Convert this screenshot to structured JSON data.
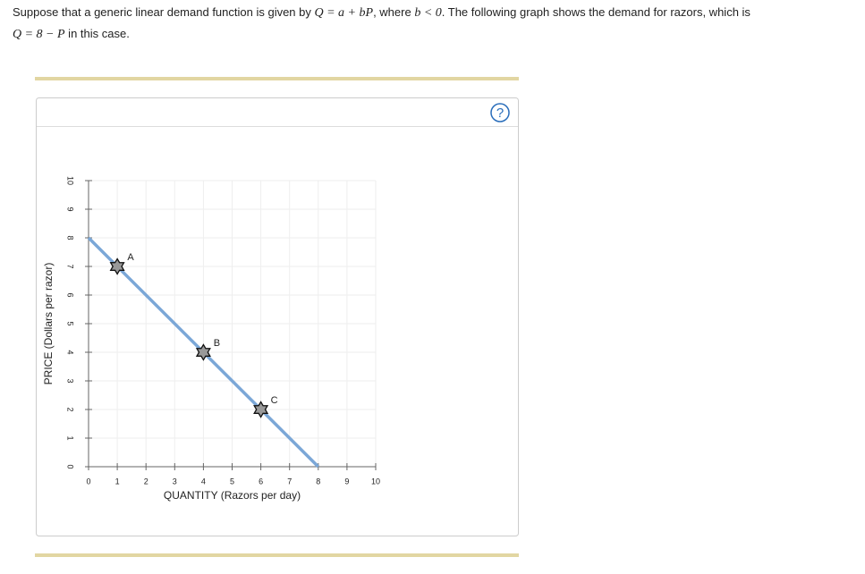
{
  "question": {
    "line1": [
      "Suppose that a generic linear demand function is given by ",
      "Q = a + bP",
      ", where ",
      "b < 0",
      ". The following graph shows the demand for razors, which is"
    ],
    "line2": [
      "Q = 8 − P",
      " in this case."
    ]
  },
  "help": "?",
  "chart_data": {
    "type": "line",
    "x_label": "QUANTITY (Razors per day)",
    "y_label": "PRICE (Dollars per razor)",
    "xlim": [
      0,
      10
    ],
    "ylim": [
      0,
      10
    ],
    "xticks": [
      0,
      1,
      2,
      3,
      4,
      5,
      6,
      7,
      8,
      9,
      10
    ],
    "yticks": [
      0,
      1,
      2,
      3,
      4,
      5,
      6,
      7,
      8,
      9,
      10
    ],
    "grid": true,
    "series": [
      {
        "color": "#7ba7d7",
        "x": [
          0,
          8
        ],
        "values": [
          8,
          0
        ]
      }
    ],
    "points": [
      {
        "label": "A",
        "x": 1,
        "y": 7
      },
      {
        "label": "B",
        "x": 4,
        "y": 4
      },
      {
        "label": "C",
        "x": 6,
        "y": 2
      }
    ]
  }
}
